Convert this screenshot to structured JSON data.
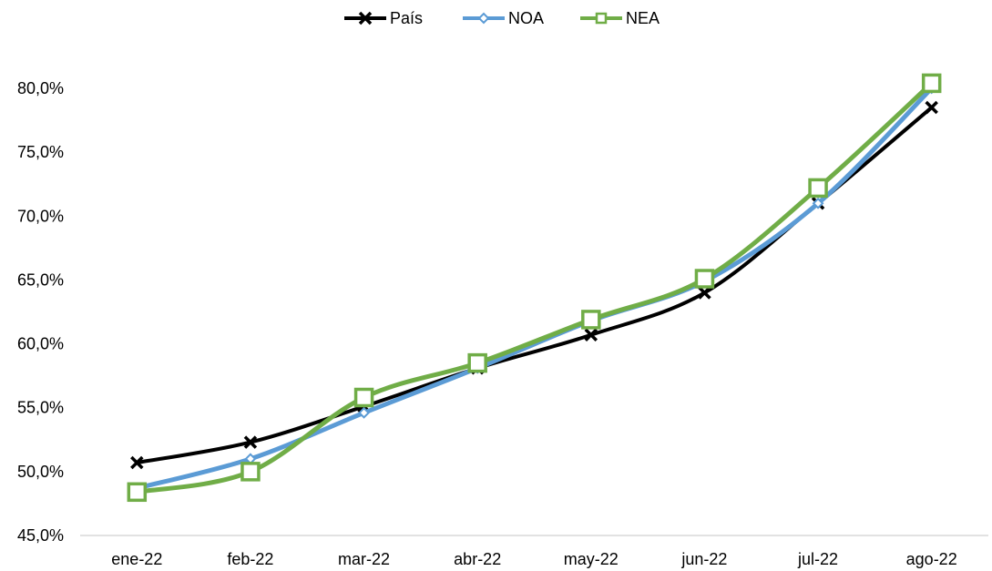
{
  "chart_data": {
    "type": "line",
    "categories": [
      "ene-22",
      "feb-22",
      "mar-22",
      "abr-22",
      "may-22",
      "jun-22",
      "jul-22",
      "ago-22"
    ],
    "ylim": [
      45,
      80
    ],
    "yticks": [
      45,
      50,
      55,
      60,
      65,
      70,
      75,
      80
    ],
    "ytick_labels": [
      "45,0%",
      "50,0%",
      "55,0%",
      "60,0%",
      "65,0%",
      "70,0%",
      "75,0%",
      "80,0%"
    ],
    "grid": false,
    "legend_position": "top-center",
    "series": [
      {
        "name": "País",
        "color": "#000000",
        "marker": "x-icon",
        "values": [
          50.7,
          52.3,
          55.1,
          58.1,
          60.7,
          64.0,
          71.0,
          78.5
        ]
      },
      {
        "name": "NOA",
        "color": "#5b9bd5",
        "marker": "diamond-icon",
        "values": [
          48.7,
          51.0,
          54.6,
          58.1,
          61.8,
          64.9,
          71.0,
          80.0
        ]
      },
      {
        "name": "NEA",
        "color": "#70ad47",
        "marker": "square-icon",
        "values": [
          48.4,
          50.0,
          55.8,
          58.5,
          61.9,
          65.1,
          72.2,
          80.4
        ]
      }
    ]
  }
}
